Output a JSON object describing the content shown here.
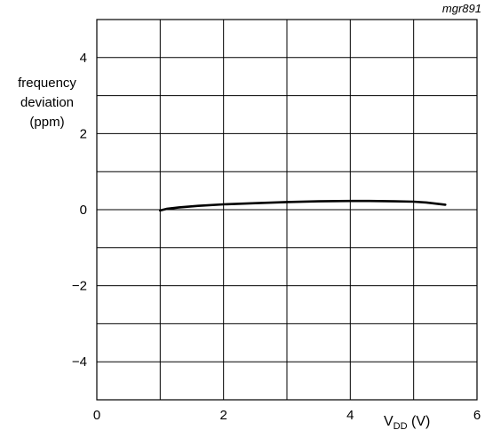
{
  "figure_tag": "mgr891",
  "chart_data": {
    "type": "line",
    "ylabel_lines": [
      "frequency",
      "deviation",
      "(ppm)"
    ],
    "xlabel_main": "V",
    "xlabel_sub": "DD",
    "xlabel_unit": "(V)",
    "xlim": [
      0,
      6
    ],
    "ylim": [
      -5,
      5
    ],
    "xgrid_step": 1,
    "ygrid_step": 1,
    "xticks": [
      0,
      2,
      4,
      6
    ],
    "yticks": [
      4,
      2,
      0,
      -2,
      -4
    ],
    "ytick_labels": [
      "4",
      "2",
      "0",
      "−2",
      "−4"
    ],
    "grid": true,
    "series": [
      {
        "color": "#000000",
        "x": [
          1.0,
          1.1,
          1.3,
          1.6,
          2.0,
          2.5,
          3.0,
          3.5,
          4.0,
          4.3,
          4.7,
          5.0,
          5.2,
          5.35,
          5.5
        ],
        "y": [
          -0.02,
          0.02,
          0.06,
          0.1,
          0.14,
          0.17,
          0.2,
          0.22,
          0.23,
          0.23,
          0.22,
          0.21,
          0.19,
          0.16,
          0.13
        ]
      }
    ]
  }
}
